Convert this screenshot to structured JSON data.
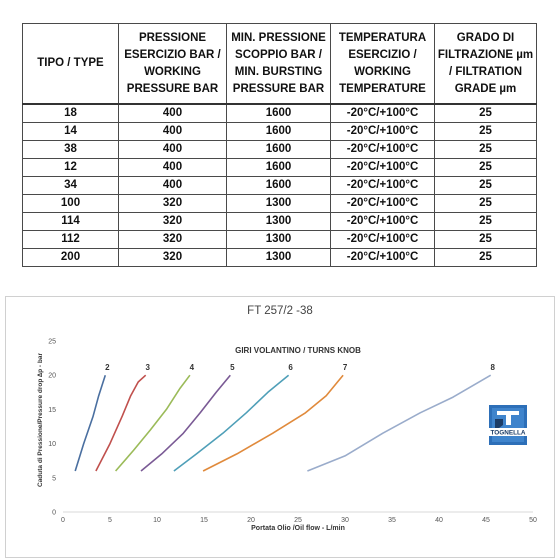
{
  "table": {
    "headers": [
      [
        "TIPO / TYPE"
      ],
      [
        "PRESSIONE",
        "ESERCIZIO BAR /",
        "WORKING",
        "PRESSURE BAR"
      ],
      [
        "MIN. PRESSIONE",
        "SCOPPIO BAR /",
        "MIN. BURSTING",
        "PRESSURE BAR"
      ],
      [
        "TEMPERATURA",
        "ESERCIZIO /",
        "WORKING",
        "TEMPERATURE"
      ],
      [
        "GRADO DI",
        "FILTRAZIONE µm",
        "/ FILTRATION",
        "GRADE µm"
      ]
    ],
    "rows": [
      [
        "18",
        "400",
        "1600",
        "-20°C/+100°C",
        "25"
      ],
      [
        "14",
        "400",
        "1600",
        "-20°C/+100°C",
        "25"
      ],
      [
        "38",
        "400",
        "1600",
        "-20°C/+100°C",
        "25"
      ],
      [
        "12",
        "400",
        "1600",
        "-20°C/+100°C",
        "25"
      ],
      [
        "34",
        "400",
        "1600",
        "-20°C/+100°C",
        "25"
      ],
      [
        "100",
        "320",
        "1300",
        "-20°C/+100°C",
        "25"
      ],
      [
        "114",
        "320",
        "1300",
        "-20°C/+100°C",
        "25"
      ],
      [
        "112",
        "320",
        "1300",
        "-20°C/+100°C",
        "25"
      ],
      [
        "200",
        "320",
        "1300",
        "-20°C/+100°C",
        "25"
      ]
    ]
  },
  "logo": {
    "text": "TOGNELLA"
  },
  "chart_data": {
    "type": "line",
    "title": "FT 257/2 -38",
    "subtitle": "GIRI VOLANTINO / TURNS KNOB",
    "xlabel": "Portata Olio /Oil flow - L/min",
    "ylabel": "Caduta di Pressione/Pressure drop  ∆p - bar",
    "xlim": [
      0,
      50
    ],
    "ylim": [
      0,
      25
    ],
    "xticks": [
      0,
      5,
      10,
      15,
      20,
      25,
      30,
      35,
      40,
      45,
      50
    ],
    "yticks": [
      0,
      5,
      10,
      15,
      20,
      25
    ],
    "grid": false,
    "series": [
      {
        "name": "2",
        "color": "#4a6fa0",
        "x": [
          1.3,
          2.2,
          3.2,
          3.8,
          4.5
        ],
        "y": [
          6,
          10,
          14,
          17,
          20
        ]
      },
      {
        "name": "3",
        "color": "#c0504d",
        "x": [
          3.5,
          5.0,
          6.3,
          7.2,
          8.0,
          8.8
        ],
        "y": [
          6,
          10,
          14,
          17,
          19,
          20
        ]
      },
      {
        "name": "4",
        "color": "#9bbb59",
        "x": [
          5.6,
          7.5,
          9.3,
          11.0,
          12.4,
          13.5
        ],
        "y": [
          6,
          9,
          12,
          15,
          18,
          20
        ]
      },
      {
        "name": "5",
        "color": "#7a5a95",
        "x": [
          8.3,
          10.5,
          12.8,
          14.6,
          16.3,
          17.8
        ],
        "y": [
          6,
          8.5,
          11.5,
          14.5,
          17.5,
          20
        ]
      },
      {
        "name": "6",
        "color": "#4f9fb8",
        "x": [
          11.8,
          14.2,
          17.0,
          19.5,
          21.8,
          24.0
        ],
        "y": [
          6,
          8.5,
          11.5,
          14.5,
          17.5,
          20
        ]
      },
      {
        "name": "7",
        "color": "#e08a3c",
        "x": [
          14.9,
          18.5,
          22.3,
          25.8,
          28.0,
          29.8
        ],
        "y": [
          6,
          8.5,
          11.5,
          14.5,
          17.0,
          20
        ]
      },
      {
        "name": "8",
        "color": "#9aaccb",
        "x": [
          26.0,
          30.0,
          34.0,
          38.0,
          41.5,
          45.5
        ],
        "y": [
          6,
          8.2,
          11.5,
          14.5,
          16.8,
          20
        ]
      }
    ]
  }
}
